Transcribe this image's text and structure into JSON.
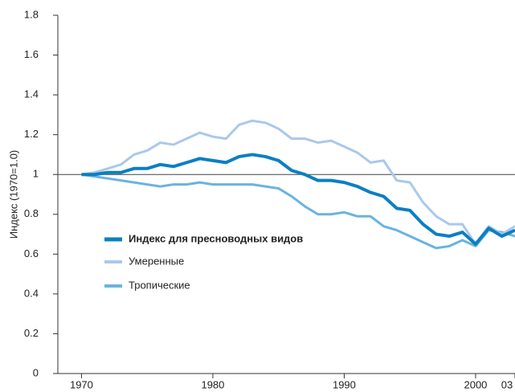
{
  "chart_data": {
    "type": "line",
    "y_label": "Индекс (1970=1.0)",
    "x": [
      1970,
      1971,
      1972,
      1973,
      1974,
      1975,
      1976,
      1977,
      1978,
      1979,
      1980,
      1981,
      1982,
      1983,
      1984,
      1985,
      1986,
      1987,
      1988,
      1989,
      1990,
      1991,
      1992,
      1993,
      1994,
      1995,
      1996,
      1997,
      1998,
      1999,
      2000,
      2001,
      2002,
      2003
    ],
    "series": [
      {
        "name": "Индекс для пресноводных видов",
        "color": "#0b7fc3",
        "width": 4,
        "values": [
          1.0,
          1.0,
          1.01,
          1.01,
          1.03,
          1.03,
          1.05,
          1.04,
          1.06,
          1.08,
          1.07,
          1.06,
          1.09,
          1.1,
          1.09,
          1.07,
          1.02,
          1.0,
          0.97,
          0.97,
          0.96,
          0.94,
          0.91,
          0.89,
          0.83,
          0.82,
          0.75,
          0.7,
          0.69,
          0.71,
          0.65,
          0.73,
          0.69,
          0.72
        ]
      },
      {
        "name": "Умеренные",
        "color": "#aac8ea",
        "width": 3,
        "values": [
          1.0,
          1.01,
          1.03,
          1.05,
          1.1,
          1.12,
          1.16,
          1.15,
          1.18,
          1.21,
          1.19,
          1.18,
          1.25,
          1.27,
          1.26,
          1.23,
          1.18,
          1.18,
          1.16,
          1.17,
          1.14,
          1.11,
          1.06,
          1.07,
          0.97,
          0.96,
          0.86,
          0.79,
          0.75,
          0.75,
          0.65,
          0.74,
          0.7,
          0.74
        ]
      },
      {
        "name": "Тропические",
        "color": "#6ab3e0",
        "width": 3,
        "values": [
          1.0,
          0.99,
          0.98,
          0.97,
          0.96,
          0.95,
          0.94,
          0.95,
          0.95,
          0.96,
          0.95,
          0.95,
          0.95,
          0.95,
          0.94,
          0.93,
          0.89,
          0.84,
          0.8,
          0.8,
          0.81,
          0.79,
          0.79,
          0.74,
          0.72,
          0.69,
          0.66,
          0.63,
          0.64,
          0.67,
          0.64,
          0.72,
          0.71,
          0.69
        ]
      }
    ],
    "xlim": [
      1968.2,
      2003
    ],
    "xticks": [
      1970,
      1980,
      1990,
      2000,
      {
        "value": 2003,
        "label": "03"
      }
    ],
    "ylim": [
      0,
      1.8
    ],
    "yticks": [
      0,
      0.2,
      0.4,
      0.6,
      0.8,
      1.0,
      1.2,
      1.4,
      1.6,
      1.8
    ],
    "reference_line": 1.0
  }
}
